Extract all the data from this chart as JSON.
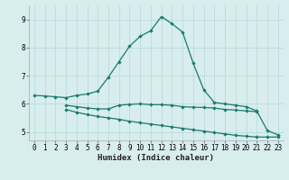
{
  "x": [
    0,
    1,
    2,
    3,
    4,
    5,
    6,
    7,
    8,
    9,
    10,
    11,
    12,
    13,
    14,
    15,
    16,
    17,
    18,
    19,
    20,
    21,
    22,
    23
  ],
  "line_top": [
    6.3,
    6.28,
    6.25,
    6.22,
    6.3,
    6.35,
    6.45,
    6.95,
    7.5,
    8.05,
    8.4,
    8.6,
    9.1,
    8.85,
    8.55,
    7.45,
    6.5,
    6.05,
    6.0,
    5.95,
    5.9,
    5.75,
    5.05,
    4.9
  ],
  "line_mid": [
    null,
    null,
    null,
    5.95,
    5.9,
    5.85,
    5.82,
    5.82,
    5.95,
    5.98,
    6.0,
    5.97,
    5.97,
    5.95,
    5.9,
    5.88,
    5.87,
    5.85,
    5.8,
    5.78,
    5.75,
    5.72,
    null,
    null
  ],
  "line_bot": [
    null,
    null,
    null,
    5.8,
    5.7,
    5.62,
    5.55,
    5.5,
    5.45,
    5.38,
    5.33,
    5.28,
    5.23,
    5.18,
    5.13,
    5.08,
    5.03,
    4.98,
    4.93,
    4.88,
    4.85,
    4.82,
    4.82,
    4.82
  ],
  "color": "#1a7a6e",
  "bg_color": "#d8eded",
  "grid_color": "#b8d8d8",
  "xlabel": "Humidex (Indice chaleur)",
  "ylim": [
    4.7,
    9.5
  ],
  "xlim": [
    -0.5,
    23.5
  ],
  "yticks": [
    5,
    6,
    7,
    8,
    9
  ],
  "xticks": [
    0,
    1,
    2,
    3,
    4,
    5,
    6,
    7,
    8,
    9,
    10,
    11,
    12,
    13,
    14,
    15,
    16,
    17,
    18,
    19,
    20,
    21,
    22,
    23
  ]
}
